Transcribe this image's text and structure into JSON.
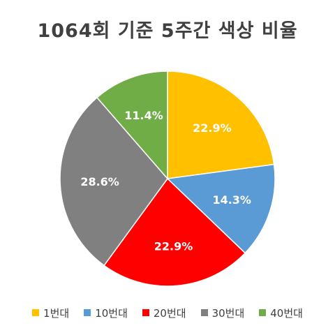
{
  "chart_data": {
    "type": "pie",
    "title": "1064회 기준 5주간 색상 비율",
    "categories": [
      "1번대",
      "10번대",
      "20번대",
      "30번대",
      "40번대"
    ],
    "values": [
      22.9,
      14.3,
      22.9,
      28.6,
      11.4
    ],
    "labels": [
      "22.9%",
      "14.3%",
      "22.9%",
      "28.6%",
      "11.4%"
    ],
    "colors": [
      "#FFC000",
      "#5B9BD5",
      "#FF0000",
      "#808080",
      "#70AD47"
    ],
    "legend_position": "bottom",
    "start_angle": "top-clockwise"
  }
}
